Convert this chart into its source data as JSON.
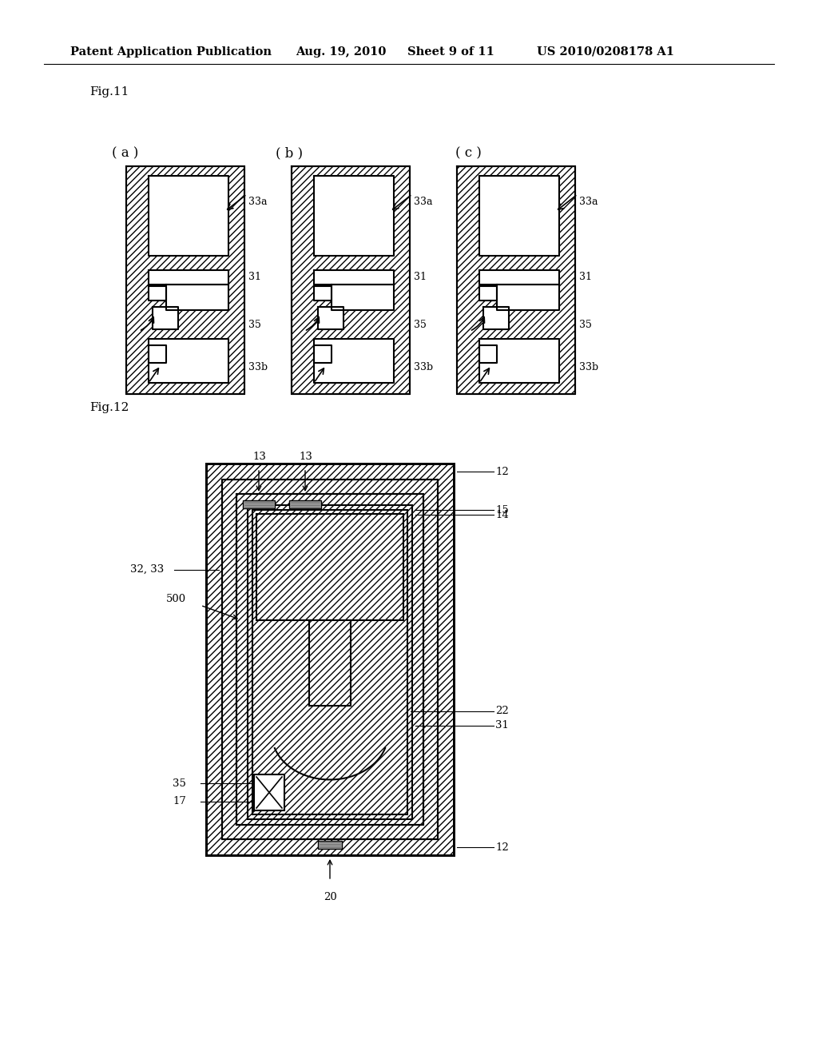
{
  "bg_color": "#ffffff",
  "header_text": "Patent Application Publication",
  "header_date": "Aug. 19, 2010",
  "header_sheet": "Sheet 9 of 11",
  "header_patent": "US 2010/0208178 A1",
  "fig11_label": "Fig.11",
  "fig12_label": "Fig.12",
  "sub_labels_11": [
    "( a )",
    "( b )",
    "( c )"
  ]
}
